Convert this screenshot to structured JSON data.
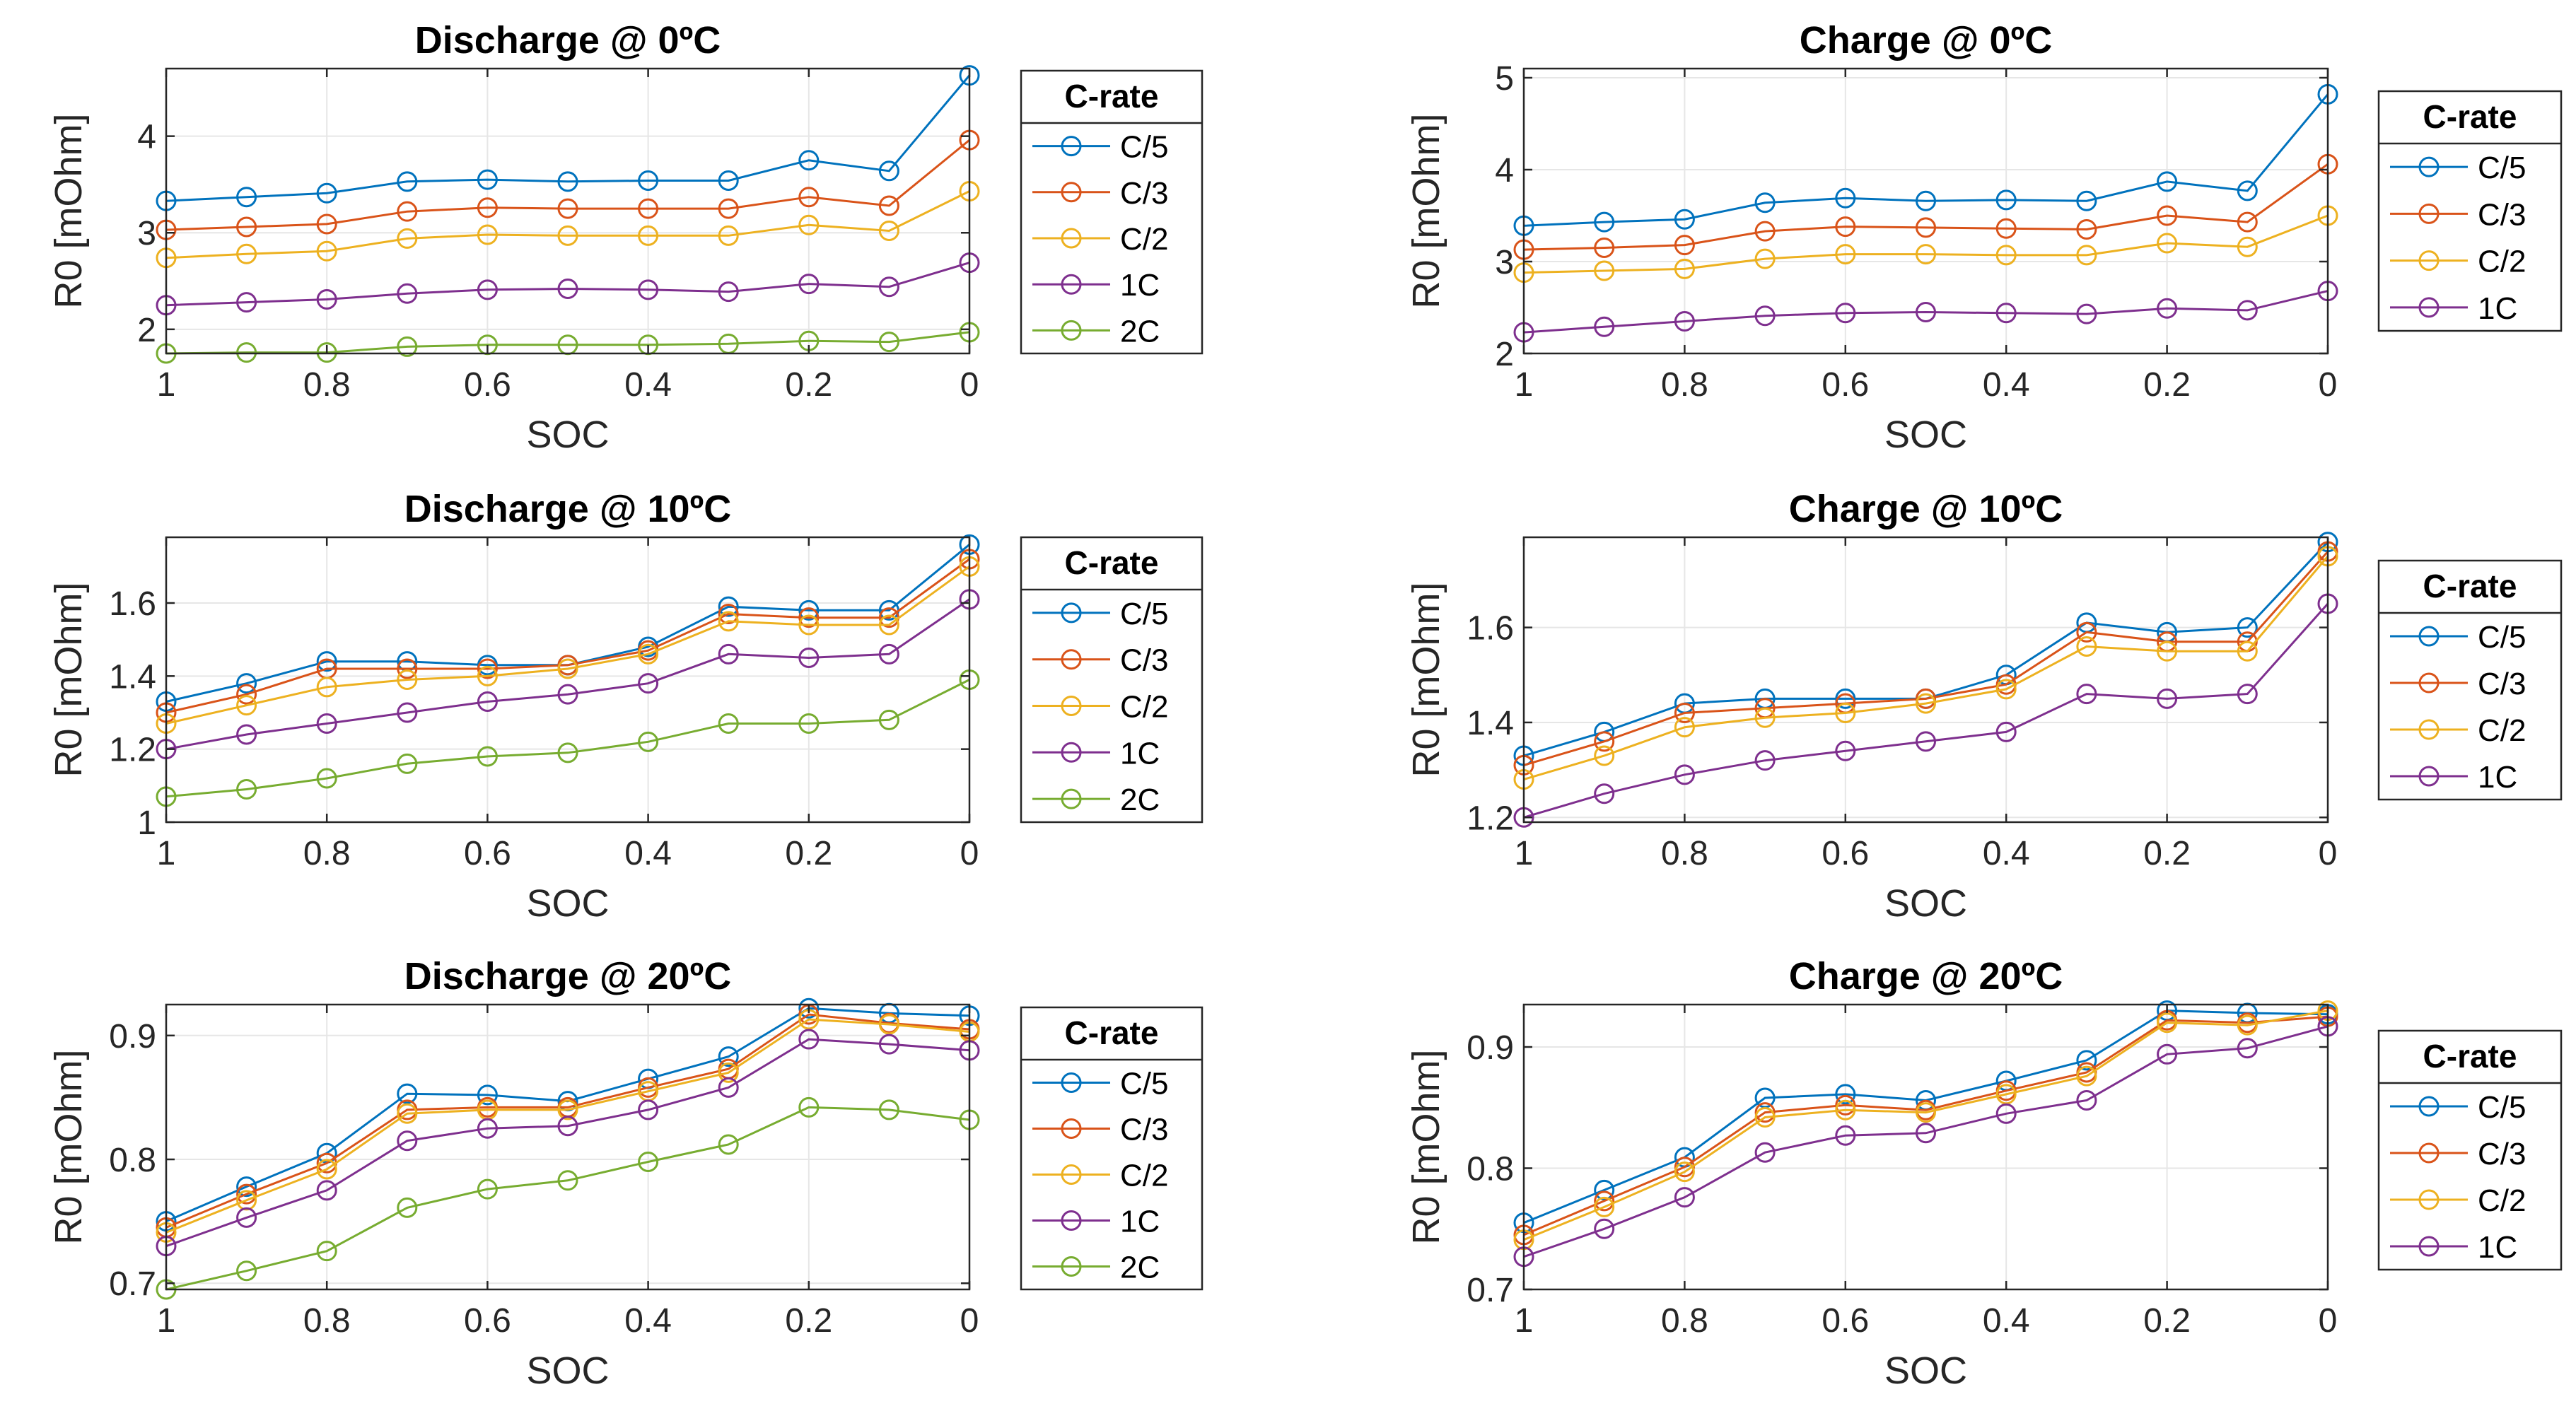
{
  "figure": {
    "legend_title": "C-rate"
  },
  "chart_data": [
    {
      "type": "line",
      "title": "Discharge @ 0ºC",
      "xlabel": "SOC",
      "ylabel": "R0 [mOhm]",
      "xlim": [
        1,
        0
      ],
      "ylim": [
        1.75,
        4.7
      ],
      "yticks": [
        2,
        3,
        4
      ],
      "xticks": [
        1,
        0.8,
        0.6,
        0.4,
        0.2,
        0
      ],
      "x": [
        1,
        0.9,
        0.8,
        0.7,
        0.6,
        0.5,
        0.4,
        0.3,
        0.2,
        0.1,
        0
      ],
      "series": [
        {
          "name": "C/5",
          "color": "#0072BD",
          "values": [
            3.33,
            3.37,
            3.41,
            3.53,
            3.55,
            3.53,
            3.54,
            3.54,
            3.75,
            3.64,
            4.63
          ]
        },
        {
          "name": "C/3",
          "color": "#D95319",
          "values": [
            3.03,
            3.06,
            3.09,
            3.22,
            3.26,
            3.25,
            3.25,
            3.25,
            3.37,
            3.28,
            3.96
          ]
        },
        {
          "name": "C/2",
          "color": "#EDB120",
          "values": [
            2.74,
            2.78,
            2.81,
            2.94,
            2.98,
            2.97,
            2.97,
            2.97,
            3.08,
            3.02,
            3.43
          ]
        },
        {
          "name": "1C",
          "color": "#7E2F8E",
          "values": [
            2.25,
            2.28,
            2.31,
            2.37,
            2.41,
            2.42,
            2.41,
            2.39,
            2.47,
            2.44,
            2.69
          ]
        },
        {
          "name": "2C",
          "color": "#77AC30",
          "values": [
            1.75,
            1.76,
            1.76,
            1.82,
            1.84,
            1.84,
            1.84,
            1.85,
            1.88,
            1.87,
            1.97
          ]
        }
      ]
    },
    {
      "type": "line",
      "title": "Charge @ 0ºC",
      "xlabel": "SOC",
      "ylabel": "R0 [mOhm]",
      "xlim": [
        1,
        0
      ],
      "ylim": [
        2,
        5.1
      ],
      "yticks": [
        2,
        3,
        4,
        5
      ],
      "xticks": [
        1,
        0.8,
        0.6,
        0.4,
        0.2,
        0
      ],
      "x": [
        1,
        0.9,
        0.8,
        0.7,
        0.6,
        0.5,
        0.4,
        0.3,
        0.2,
        0.1,
        0
      ],
      "series": [
        {
          "name": "C/5",
          "color": "#0072BD",
          "values": [
            3.39,
            3.43,
            3.46,
            3.64,
            3.69,
            3.66,
            3.67,
            3.66,
            3.87,
            3.77,
            4.82
          ]
        },
        {
          "name": "C/3",
          "color": "#D95319",
          "values": [
            3.13,
            3.15,
            3.18,
            3.33,
            3.38,
            3.37,
            3.36,
            3.35,
            3.5,
            3.43,
            4.06
          ]
        },
        {
          "name": "C/2",
          "color": "#EDB120",
          "values": [
            2.88,
            2.9,
            2.92,
            3.03,
            3.08,
            3.08,
            3.07,
            3.07,
            3.2,
            3.16,
            3.5
          ]
        },
        {
          "name": "1C",
          "color": "#7E2F8E",
          "values": [
            2.23,
            2.29,
            2.35,
            2.41,
            2.44,
            2.45,
            2.44,
            2.43,
            2.49,
            2.47,
            2.68
          ]
        }
      ]
    },
    {
      "type": "line",
      "title": "Discharge @ 10ºC",
      "xlabel": "SOC",
      "ylabel": "R0 [mOhm]",
      "xlim": [
        1,
        0
      ],
      "ylim": [
        1,
        1.78
      ],
      "yticks": [
        1,
        1.2,
        1.4,
        1.6
      ],
      "xticks": [
        1,
        0.8,
        0.6,
        0.4,
        0.2,
        0
      ],
      "x": [
        1,
        0.9,
        0.8,
        0.7,
        0.6,
        0.5,
        0.4,
        0.3,
        0.2,
        0.1,
        0
      ],
      "series": [
        {
          "name": "C/5",
          "color": "#0072BD",
          "values": [
            1.33,
            1.38,
            1.44,
            1.44,
            1.43,
            1.43,
            1.48,
            1.59,
            1.58,
            1.58,
            1.76
          ]
        },
        {
          "name": "C/3",
          "color": "#D95319",
          "values": [
            1.3,
            1.35,
            1.42,
            1.42,
            1.42,
            1.43,
            1.47,
            1.57,
            1.56,
            1.56,
            1.72
          ]
        },
        {
          "name": "C/2",
          "color": "#EDB120",
          "values": [
            1.27,
            1.32,
            1.37,
            1.39,
            1.4,
            1.42,
            1.46,
            1.55,
            1.54,
            1.54,
            1.7
          ]
        },
        {
          "name": "1C",
          "color": "#7E2F8E",
          "values": [
            1.2,
            1.24,
            1.27,
            1.3,
            1.33,
            1.35,
            1.38,
            1.46,
            1.45,
            1.46,
            1.61
          ]
        },
        {
          "name": "2C",
          "color": "#77AC30",
          "values": [
            1.07,
            1.09,
            1.12,
            1.16,
            1.18,
            1.19,
            1.22,
            1.27,
            1.27,
            1.28,
            1.39
          ]
        }
      ]
    },
    {
      "type": "line",
      "title": "Charge @ 10ºC",
      "xlabel": "SOC",
      "ylabel": "R0 [mOhm]",
      "xlim": [
        1,
        0
      ],
      "ylim": [
        1.19,
        1.79
      ],
      "yticks": [
        1.2,
        1.4,
        1.6
      ],
      "xticks": [
        1,
        0.8,
        0.6,
        0.4,
        0.2,
        0
      ],
      "x": [
        1,
        0.9,
        0.8,
        0.7,
        0.6,
        0.5,
        0.4,
        0.3,
        0.2,
        0.1,
        0
      ],
      "series": [
        {
          "name": "C/5",
          "color": "#0072BD",
          "values": [
            1.33,
            1.38,
            1.44,
            1.45,
            1.45,
            1.45,
            1.5,
            1.61,
            1.59,
            1.6,
            1.78
          ]
        },
        {
          "name": "C/3",
          "color": "#D95319",
          "values": [
            1.31,
            1.36,
            1.42,
            1.43,
            1.44,
            1.45,
            1.48,
            1.59,
            1.57,
            1.57,
            1.76
          ]
        },
        {
          "name": "C/2",
          "color": "#EDB120",
          "values": [
            1.28,
            1.33,
            1.39,
            1.41,
            1.42,
            1.44,
            1.47,
            1.56,
            1.55,
            1.55,
            1.75
          ]
        },
        {
          "name": "1C",
          "color": "#7E2F8E",
          "values": [
            1.2,
            1.25,
            1.29,
            1.32,
            1.34,
            1.36,
            1.38,
            1.46,
            1.45,
            1.46,
            1.65
          ]
        }
      ]
    },
    {
      "type": "line",
      "title": "Discharge @ 20ºC",
      "xlabel": "SOC",
      "ylabel": "R0 [mOhm]",
      "xlim": [
        1,
        0
      ],
      "ylim": [
        0.695,
        0.925
      ],
      "yticks": [
        0.7,
        0.8,
        0.9
      ],
      "xticks": [
        1,
        0.8,
        0.6,
        0.4,
        0.2,
        0
      ],
      "x": [
        1,
        0.9,
        0.8,
        0.7,
        0.6,
        0.5,
        0.4,
        0.3,
        0.2,
        0.1,
        0
      ],
      "series": [
        {
          "name": "C/5",
          "color": "#0072BD",
          "values": [
            0.75,
            0.778,
            0.805,
            0.853,
            0.852,
            0.847,
            0.865,
            0.883,
            0.922,
            0.918,
            0.916
          ]
        },
        {
          "name": "C/3",
          "color": "#D95319",
          "values": [
            0.745,
            0.772,
            0.797,
            0.84,
            0.842,
            0.842,
            0.858,
            0.873,
            0.917,
            0.91,
            0.905
          ]
        },
        {
          "name": "C/2",
          "color": "#EDB120",
          "values": [
            0.741,
            0.767,
            0.792,
            0.837,
            0.84,
            0.84,
            0.855,
            0.87,
            0.913,
            0.909,
            0.903
          ]
        },
        {
          "name": "1C",
          "color": "#7E2F8E",
          "values": [
            0.73,
            0.753,
            0.775,
            0.815,
            0.825,
            0.827,
            0.84,
            0.858,
            0.897,
            0.893,
            0.888
          ]
        },
        {
          "name": "2C",
          "color": "#77AC30",
          "values": [
            0.695,
            0.71,
            0.726,
            0.761,
            0.776,
            0.783,
            0.798,
            0.812,
            0.842,
            0.84,
            0.832
          ]
        }
      ]
    },
    {
      "type": "line",
      "title": "Charge @ 20ºC",
      "xlabel": "SOC",
      "ylabel": "R0 [mOhm]",
      "xlim": [
        1,
        0
      ],
      "ylim": [
        0.7,
        0.935
      ],
      "yticks": [
        0.7,
        0.8,
        0.9
      ],
      "xticks": [
        1,
        0.8,
        0.6,
        0.4,
        0.2,
        0
      ],
      "x": [
        1,
        0.9,
        0.8,
        0.7,
        0.6,
        0.5,
        0.4,
        0.3,
        0.2,
        0.1,
        0
      ],
      "series": [
        {
          "name": "C/5",
          "color": "#0072BD",
          "values": [
            0.755,
            0.782,
            0.809,
            0.858,
            0.861,
            0.856,
            0.872,
            0.889,
            0.93,
            0.928,
            0.927
          ]
        },
        {
          "name": "C/3",
          "color": "#D95319",
          "values": [
            0.745,
            0.773,
            0.801,
            0.846,
            0.852,
            0.848,
            0.864,
            0.879,
            0.922,
            0.92,
            0.925
          ]
        },
        {
          "name": "C/2",
          "color": "#EDB120",
          "values": [
            0.741,
            0.768,
            0.797,
            0.842,
            0.848,
            0.846,
            0.861,
            0.876,
            0.92,
            0.918,
            0.93
          ]
        },
        {
          "name": "1C",
          "color": "#7E2F8E",
          "values": [
            0.727,
            0.75,
            0.776,
            0.813,
            0.827,
            0.829,
            0.845,
            0.856,
            0.894,
            0.899,
            0.917
          ]
        }
      ]
    }
  ]
}
